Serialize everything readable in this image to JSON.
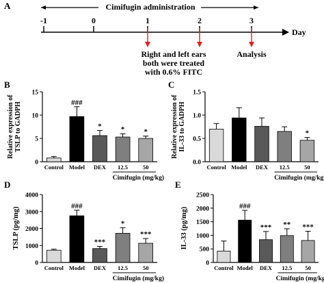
{
  "figure": {
    "panel_letters": {
      "A": "A",
      "B": "B",
      "C": "C",
      "D": "D",
      "E": "E"
    }
  },
  "timeline": {
    "title": "Cimifugin administration",
    "day_label": "Day",
    "ticks": [
      "-1",
      "0",
      "1",
      "2",
      "3"
    ],
    "treatment_note_line1": "Right and left ears",
    "treatment_note_line2": "both were treated",
    "treatment_note_line3": "with 0.6% FITC",
    "analysis_note": "Analysis",
    "colors": {
      "arrow": "#e02020",
      "line": "#000000"
    }
  },
  "chart_data": [
    {
      "panel": "B",
      "type": "bar",
      "categories": [
        "Control",
        "Model",
        "DEX",
        "12.5",
        "50"
      ],
      "values": [
        0.8,
        9.7,
        5.6,
        5.3,
        5.0
      ],
      "errors": [
        0.3,
        2.1,
        1.1,
        0.7,
        0.5
      ],
      "significance": [
        "",
        "###",
        "*",
        "*",
        "*"
      ],
      "ylabel_line1": "Relative expression of",
      "ylabel_line2": "TSLP to GADPH",
      "ylim": [
        0,
        15
      ],
      "yticks": [
        "0",
        "5",
        "10",
        "15"
      ],
      "group_label": "Cimifugin (mg/kg)",
      "bar_colors": [
        "#d9d9d9",
        "#000000",
        "#595959",
        "#7f7f7f",
        "#a6a6a6"
      ]
    },
    {
      "panel": "C",
      "type": "bar",
      "categories": [
        "Control",
        "Model",
        "DEX",
        "12.5",
        "50"
      ],
      "values": [
        0.7,
        0.94,
        0.76,
        0.65,
        0.46
      ],
      "errors": [
        0.12,
        0.22,
        0.18,
        0.1,
        0.06
      ],
      "significance": [
        "",
        "",
        "",
        "",
        "*"
      ],
      "ylabel_line1": "Relative expression of",
      "ylabel_line2": "IL-33 to GADPH",
      "ylim": [
        0,
        1.5
      ],
      "yticks": [
        "0.0",
        "0.5",
        "1.0",
        "1.5"
      ],
      "group_label": "Cimifugin (mg/kg)",
      "bar_colors": [
        "#d9d9d9",
        "#000000",
        "#595959",
        "#7f7f7f",
        "#a6a6a6"
      ]
    },
    {
      "panel": "D",
      "type": "bar",
      "categories": [
        "Control",
        "Model",
        "DEX",
        "12.5",
        "50"
      ],
      "values": [
        720,
        2750,
        820,
        1720,
        1130
      ],
      "errors": [
        60,
        330,
        130,
        330,
        280
      ],
      "significance": [
        "",
        "###",
        "***",
        "*",
        "***"
      ],
      "ylabel": "TSLP (pg/mg)",
      "ylim": [
        0,
        4000
      ],
      "yticks": [
        "0",
        "1000",
        "2000",
        "3000",
        "4000"
      ],
      "group_label": "Cimifugin (mg/kg)",
      "bar_colors": [
        "#d9d9d9",
        "#000000",
        "#595959",
        "#7f7f7f",
        "#a6a6a6"
      ]
    },
    {
      "panel": "E",
      "type": "bar",
      "categories": [
        "Control",
        "Model",
        "DEX",
        "12.5",
        "50"
      ],
      "values": [
        420,
        1560,
        840,
        990,
        810
      ],
      "errors": [
        370,
        360,
        300,
        250,
        340
      ],
      "significance": [
        "",
        "###",
        "***",
        "**",
        "***"
      ],
      "ylabel": "IL-33 (pg/mg)",
      "ylim": [
        0,
        2500
      ],
      "yticks": [
        "0",
        "500",
        "1000",
        "1500",
        "2000",
        "2500"
      ],
      "group_label": "Cimifugin (mg/kg)",
      "bar_colors": [
        "#d9d9d9",
        "#000000",
        "#595959",
        "#7f7f7f",
        "#a6a6a6"
      ]
    }
  ]
}
